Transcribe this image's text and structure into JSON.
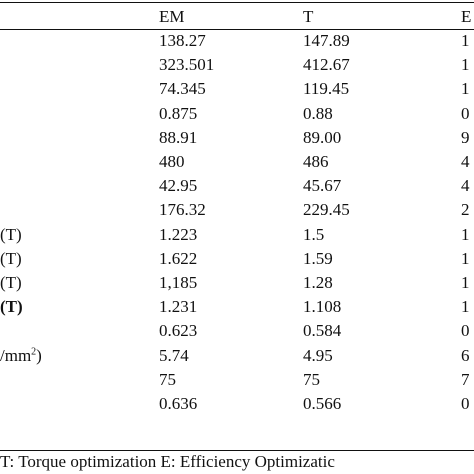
{
  "header": {
    "col_left": "",
    "col_em": "EM",
    "col_t": "T",
    "col_e": "E"
  },
  "rows": [
    {
      "label": "",
      "em": "138.27",
      "t": "147.89",
      "e": "1"
    },
    {
      "label": "",
      "em": "323.501",
      "t": "412.67",
      "e": "1"
    },
    {
      "label": "",
      "em": "74.345",
      "t": "119.45",
      "e": "1"
    },
    {
      "label": "",
      "em": "0.875",
      "t": "0.88",
      "e": "0"
    },
    {
      "label": "",
      "em": "88.91",
      "t": "89.00",
      "e": "9"
    },
    {
      "label": "",
      "em": "480",
      "t": "486",
      "e": "4"
    },
    {
      "label": "",
      "em": "42.95",
      "t": "45.67",
      "e": "4"
    },
    {
      "label": "",
      "em": "176.32",
      "t": "229.45",
      "e": "2"
    },
    {
      "label": "(T)",
      "em": "1.223",
      "t": "1.5",
      "e": "1"
    },
    {
      "label": "(T)",
      "em": "1.622",
      "t": "1.59",
      "e": "1"
    },
    {
      "label": "(T)",
      "em": "1,185",
      "t": "1.28",
      "e": "1"
    },
    {
      "label": "(T)",
      "em": "1.231",
      "t": "1.108",
      "e": "1"
    },
    {
      "label": "",
      "em": "0.623",
      "t": "0.584",
      "e": "0"
    },
    {
      "label": "/mm",
      "label_sup": "2",
      "label_after": ")",
      "em": "5.74",
      "t": "4.95",
      "e": "6"
    },
    {
      "label": "",
      "em": "75",
      "t": "75",
      "e": "7"
    },
    {
      "label": "",
      "em": "0.636",
      "t": "0.566",
      "e": "0"
    }
  ],
  "footnote": "T: Torque optimization E: Efficiency Optimizatic"
}
